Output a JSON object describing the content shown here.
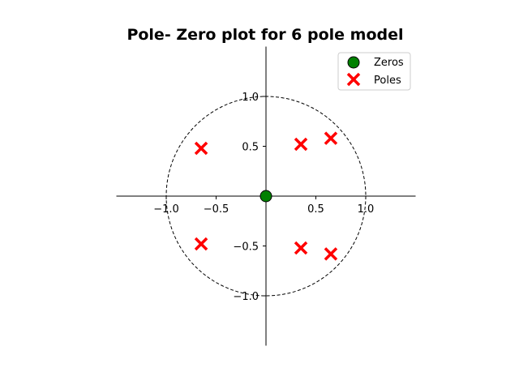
{
  "chart_data": {
    "type": "scatter",
    "title": "Pole- Zero plot for 6 pole model",
    "xlabel": "",
    "ylabel": "",
    "xlim": [
      -1.5,
      1.5
    ],
    "ylim": [
      -1.5,
      1.5
    ],
    "xticks": [
      -1.0,
      -0.5,
      0.5,
      1.0
    ],
    "xtick_labels": [
      "−1.0",
      "−0.5",
      "0.5",
      "1.0"
    ],
    "yticks": [
      -1.0,
      -0.5,
      0.5,
      1.0
    ],
    "ytick_labels": [
      "−1.0",
      "−0.5",
      "0.5",
      "1.0"
    ],
    "unit_circle": true,
    "grid": false,
    "legend_position": "top-right",
    "series": [
      {
        "name": "Zeros",
        "marker": "circle",
        "color": "#008000",
        "points": [
          [
            0.0,
            0.0
          ]
        ]
      },
      {
        "name": "Poles",
        "marker": "x",
        "color": "#ff0000",
        "points": [
          [
            -0.65,
            0.48
          ],
          [
            -0.65,
            -0.48
          ],
          [
            0.35,
            0.52
          ],
          [
            0.35,
            -0.52
          ],
          [
            0.65,
            0.58
          ],
          [
            0.65,
            -0.58
          ]
        ]
      }
    ]
  }
}
